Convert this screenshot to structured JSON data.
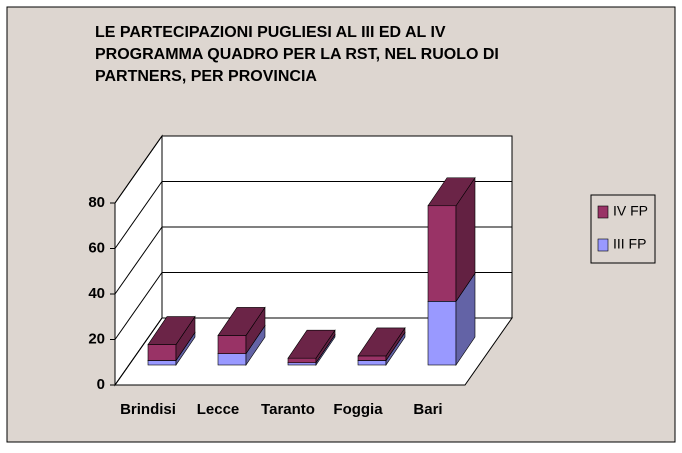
{
  "chart_data": {
    "type": "bar3d_stacked",
    "title": "LE PARTECIPAZIONI PUGLIESI AL III ED AL IV PROGRAMMA QUADRO PER LA RST, NEL RUOLO DI PARTNERS, PER PROVINCIA",
    "categories": [
      "Brindisi",
      "Lecce",
      "Taranto",
      "Foggia",
      "Bari"
    ],
    "series": [
      {
        "name": "III FP",
        "color": "#9999ff",
        "values": [
          2,
          5,
          1,
          2,
          28
        ]
      },
      {
        "name": "IV FP",
        "color": "#993366",
        "values": [
          7,
          8,
          2,
          2,
          42
        ]
      }
    ],
    "ylim": [
      0,
      80
    ],
    "yticks": [
      0,
      20,
      40,
      60,
      80
    ],
    "grid": true,
    "legend": "right"
  }
}
